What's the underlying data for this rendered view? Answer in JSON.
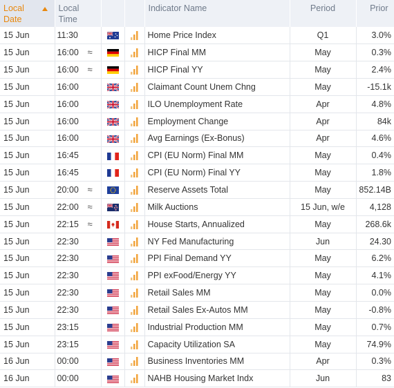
{
  "header": {
    "date": "Local Date",
    "time": "Local Time",
    "name": "Indicator Name",
    "period": "Period",
    "prior": "Prior"
  },
  "colors": {
    "accent": "#e8870c",
    "bars": "#f2a33a",
    "header_bg": "#eef1f6"
  },
  "rows": [
    {
      "date": "15 Jun",
      "time": "11:30",
      "vol": "",
      "flag": "au",
      "name": "Home Price Index",
      "period": "Q1",
      "prior": "3.0%"
    },
    {
      "date": "15 Jun",
      "time": "16:00",
      "vol": "≈",
      "flag": "de",
      "name": "HICP Final MM",
      "period": "May",
      "prior": "0.3%"
    },
    {
      "date": "15 Jun",
      "time": "16:00",
      "vol": "≈",
      "flag": "de",
      "name": "HICP Final YY",
      "period": "May",
      "prior": "2.4%"
    },
    {
      "date": "15 Jun",
      "time": "16:00",
      "vol": "",
      "flag": "gb",
      "name": "Claimant Count Unem Chng",
      "period": "May",
      "prior": "-15.1k"
    },
    {
      "date": "15 Jun",
      "time": "16:00",
      "vol": "",
      "flag": "gb",
      "name": "ILO Unemployment Rate",
      "period": "Apr",
      "prior": "4.8%"
    },
    {
      "date": "15 Jun",
      "time": "16:00",
      "vol": "",
      "flag": "gb",
      "name": "Employment Change",
      "period": "Apr",
      "prior": "84k"
    },
    {
      "date": "15 Jun",
      "time": "16:00",
      "vol": "",
      "flag": "gb",
      "name": "Avg Earnings (Ex-Bonus)",
      "period": "Apr",
      "prior": "4.6%"
    },
    {
      "date": "15 Jun",
      "time": "16:45",
      "vol": "",
      "flag": "fr",
      "name": "CPI (EU Norm) Final MM",
      "period": "May",
      "prior": "0.4%"
    },
    {
      "date": "15 Jun",
      "time": "16:45",
      "vol": "",
      "flag": "fr",
      "name": "CPI (EU Norm) Final YY",
      "period": "May",
      "prior": "1.8%"
    },
    {
      "date": "15 Jun",
      "time": "20:00",
      "vol": "≈",
      "flag": "eu",
      "name": "Reserve Assets Total",
      "period": "May",
      "prior": "852.14B"
    },
    {
      "date": "15 Jun",
      "time": "22:00",
      "vol": "≈",
      "flag": "nz",
      "name": "Milk Auctions",
      "period": "15 Jun, w/e",
      "prior": "4,128"
    },
    {
      "date": "15 Jun",
      "time": "22:15",
      "vol": "≈",
      "flag": "ca",
      "name": "House Starts, Annualized",
      "period": "May",
      "prior": "268.6k"
    },
    {
      "date": "15 Jun",
      "time": "22:30",
      "vol": "",
      "flag": "us",
      "name": "NY Fed Manufacturing",
      "period": "Jun",
      "prior": "24.30"
    },
    {
      "date": "15 Jun",
      "time": "22:30",
      "vol": "",
      "flag": "us",
      "name": "PPI Final Demand YY",
      "period": "May",
      "prior": "6.2%"
    },
    {
      "date": "15 Jun",
      "time": "22:30",
      "vol": "",
      "flag": "us",
      "name": "PPI exFood/Energy YY",
      "period": "May",
      "prior": "4.1%"
    },
    {
      "date": "15 Jun",
      "time": "22:30",
      "vol": "",
      "flag": "us",
      "name": "Retail Sales MM",
      "period": "May",
      "prior": "0.0%"
    },
    {
      "date": "15 Jun",
      "time": "22:30",
      "vol": "",
      "flag": "us",
      "name": "Retail Sales Ex-Autos MM",
      "period": "May",
      "prior": "-0.8%"
    },
    {
      "date": "15 Jun",
      "time": "23:15",
      "vol": "",
      "flag": "us",
      "name": "Industrial Production MM",
      "period": "May",
      "prior": "0.7%"
    },
    {
      "date": "15 Jun",
      "time": "23:15",
      "vol": "",
      "flag": "us",
      "name": "Capacity Utilization SA",
      "period": "May",
      "prior": "74.9%"
    },
    {
      "date": "16 Jun",
      "time": "00:00",
      "vol": "",
      "flag": "us",
      "name": "Business Inventories MM",
      "period": "Apr",
      "prior": "0.3%"
    },
    {
      "date": "16 Jun",
      "time": "00:00",
      "vol": "",
      "flag": "us",
      "name": "NAHB Housing Market Indx",
      "period": "Jun",
      "prior": "83"
    }
  ]
}
